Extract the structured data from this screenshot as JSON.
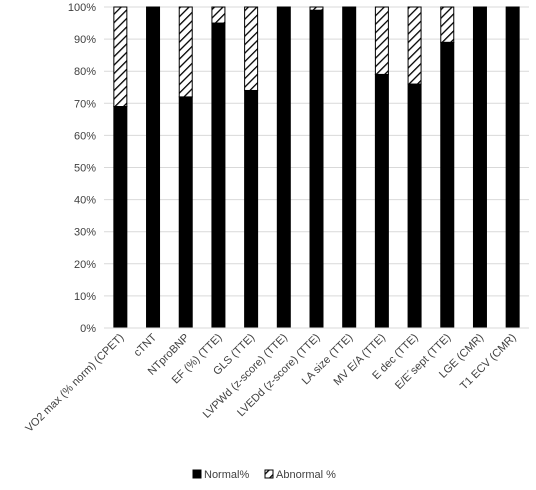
{
  "chart_data": {
    "type": "bar",
    "stacked": true,
    "title": "",
    "xlabel": "",
    "ylabel": "",
    "ylim": [
      0,
      100
    ],
    "y_tick_step": 10,
    "y_tick_suffix": "%",
    "grid": true,
    "legend_position": "bottom",
    "categories": [
      "VO2 max (% norm) (CPET)",
      "cTNT",
      "NTproBNP",
      "EF (%) (TTE)",
      "GLS (TTE)",
      "LVPWd (z-score) (TTE)",
      "LVEDd (z-score) (TTE)",
      "LA size (TTE)",
      "MV E/A (TTE)",
      "E dec (TTE)",
      "E/E´sept (TTE)",
      "LGE (CMR)",
      "T1 ECV (CMR)"
    ],
    "series": [
      {
        "name": "Normal%",
        "color": "#000000",
        "pattern": "solid",
        "values": [
          69,
          100,
          72,
          95,
          74,
          100,
          99,
          100,
          79,
          76,
          89,
          100,
          100
        ]
      },
      {
        "name": "Abnormal %",
        "color": "#000000",
        "pattern": "diagonal-hatch",
        "values": [
          31,
          0,
          28,
          5,
          26,
          0,
          1,
          0,
          21,
          24,
          11,
          0,
          0
        ]
      }
    ]
  }
}
